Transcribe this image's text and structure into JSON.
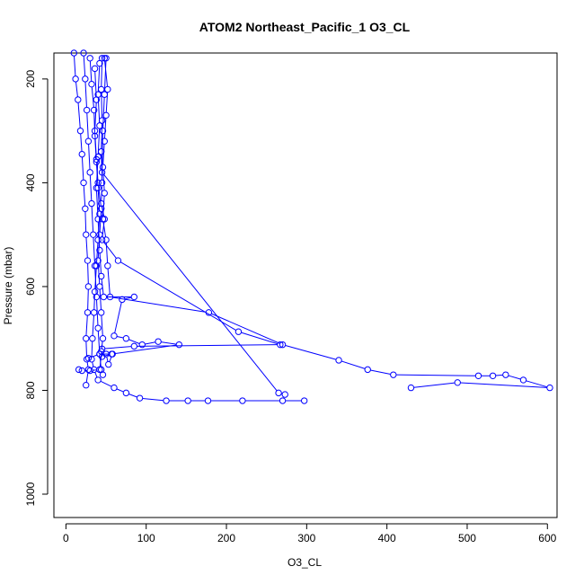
{
  "chart_data": {
    "type": "line",
    "title": "ATOM2 Northeast_Pacific_1 O3_CL",
    "xlabel": "O3_CL",
    "ylabel": "Pressure (mbar)",
    "xlim": [
      -15,
      612
    ],
    "ylim": [
      1045,
      150
    ],
    "y_reversed": true,
    "xticks": [
      0,
      100,
      200,
      300,
      400,
      500,
      600
    ],
    "yticks": [
      200,
      400,
      600,
      800,
      1000
    ],
    "line_color": "#0000ff",
    "marker": "open-circle",
    "series": [
      {
        "points": [
          [
            10,
            150
          ],
          [
            12,
            200
          ],
          [
            15,
            240
          ],
          [
            18,
            300
          ],
          [
            20,
            345
          ],
          [
            22,
            400
          ],
          [
            24,
            450
          ],
          [
            25,
            500
          ],
          [
            27,
            550
          ],
          [
            28,
            600
          ],
          [
            27,
            650
          ],
          [
            25,
            700
          ],
          [
            26,
            740
          ],
          [
            28,
            760
          ],
          [
            25,
            790
          ]
        ]
      },
      {
        "points": [
          [
            30,
            160
          ],
          [
            32,
            210
          ],
          [
            35,
            260
          ],
          [
            36,
            310
          ],
          [
            38,
            360
          ],
          [
            40,
            410
          ],
          [
            42,
            460
          ],
          [
            40,
            510
          ],
          [
            38,
            560
          ],
          [
            36,
            610
          ],
          [
            35,
            650
          ],
          [
            33,
            700
          ],
          [
            32,
            740
          ],
          [
            35,
            760
          ],
          [
            40,
            780
          ],
          [
            60,
            795
          ],
          [
            75,
            805
          ],
          [
            92,
            815
          ],
          [
            125,
            820
          ],
          [
            152,
            820
          ],
          [
            177,
            820
          ],
          [
            220,
            820
          ],
          [
            270,
            820
          ],
          [
            297,
            820
          ]
        ]
      },
      {
        "points": [
          [
            45,
            160
          ],
          [
            44,
            220
          ],
          [
            45,
            280
          ],
          [
            44,
            340
          ],
          [
            45,
            400
          ],
          [
            44,
            440
          ],
          [
            48,
            470
          ],
          [
            45,
            510
          ],
          [
            65,
            550
          ],
          [
            215,
            687
          ],
          [
            267,
            712
          ],
          [
            85,
            715
          ],
          [
            45,
            720
          ],
          [
            42,
            760
          ],
          [
            30,
            762
          ],
          [
            20,
            762
          ],
          [
            16,
            760
          ]
        ]
      },
      {
        "points": [
          [
            48,
            160
          ],
          [
            52,
            220
          ],
          [
            50,
            270
          ],
          [
            48,
            320
          ],
          [
            46,
            370
          ],
          [
            48,
            420
          ],
          [
            46,
            470
          ],
          [
            50,
            510
          ],
          [
            52,
            560
          ],
          [
            55,
            620
          ],
          [
            178,
            650
          ],
          [
            270,
            712
          ],
          [
            340,
            742
          ],
          [
            376,
            760
          ],
          [
            408,
            770
          ],
          [
            514,
            772
          ],
          [
            532,
            772
          ],
          [
            548,
            770
          ],
          [
            570,
            780
          ],
          [
            603,
            795
          ],
          [
            488,
            785
          ],
          [
            430,
            795
          ]
        ]
      },
      {
        "points": [
          [
            42,
            170
          ],
          [
            40,
            230
          ],
          [
            42,
            290
          ],
          [
            40,
            350
          ],
          [
            38,
            410
          ],
          [
            40,
            470
          ],
          [
            42,
            530
          ],
          [
            44,
            580
          ],
          [
            47,
            620
          ],
          [
            85,
            620
          ],
          [
            70,
            625
          ],
          [
            60,
            695
          ],
          [
            75,
            700
          ],
          [
            95,
            712
          ],
          [
            115,
            706
          ],
          [
            141,
            712
          ],
          [
            57,
            730
          ],
          [
            45,
            735
          ]
        ]
      },
      {
        "points": [
          [
            36,
            180
          ],
          [
            38,
            240
          ],
          [
            36,
            300
          ],
          [
            38,
            355
          ],
          [
            40,
            400
          ],
          [
            44,
            450
          ],
          [
            42,
            500
          ],
          [
            40,
            550
          ],
          [
            42,
            600
          ],
          [
            44,
            650
          ],
          [
            46,
            700
          ],
          [
            44,
            725
          ],
          [
            50,
            730
          ],
          [
            53,
            750
          ],
          [
            58,
            730
          ],
          [
            42,
            730
          ],
          [
            28,
            738
          ]
        ]
      },
      {
        "points": [
          [
            50,
            160
          ],
          [
            48,
            230
          ],
          [
            46,
            300
          ],
          [
            45,
            380
          ],
          [
            265,
            805
          ],
          [
            273,
            808
          ]
        ]
      },
      {
        "points": [
          [
            22,
            150
          ],
          [
            24,
            200
          ],
          [
            26,
            260
          ],
          [
            28,
            320
          ],
          [
            30,
            380
          ],
          [
            32,
            440
          ],
          [
            34,
            500
          ],
          [
            36,
            560
          ],
          [
            38,
            620
          ],
          [
            40,
            680
          ],
          [
            42,
            730
          ],
          [
            44,
            760
          ],
          [
            46,
            770
          ]
        ]
      }
    ]
  }
}
